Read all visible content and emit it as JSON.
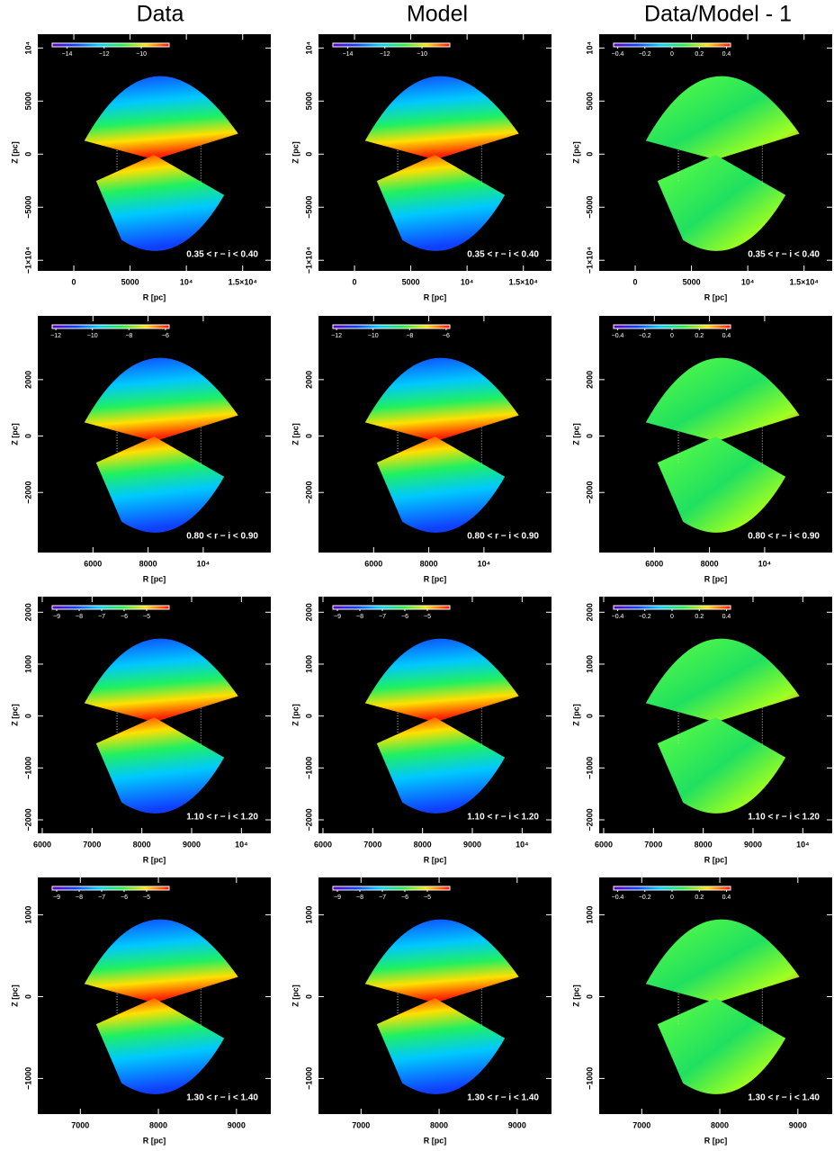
{
  "column_titles": [
    "Data",
    "Model",
    "Data/Model - 1"
  ],
  "chart_data": [
    {
      "type": "heatmap",
      "xlabel": "R [pc]",
      "ylabel": "Z [pc]",
      "annotation": "0.35 < r − i < 0.40",
      "xlim": [
        -3200,
        17500
      ],
      "ylim": [
        -11000,
        11300
      ],
      "xticks": [
        0,
        5000,
        {
          "value": 10000,
          "label": "10⁴"
        },
        {
          "value": 15000,
          "label": "1.5×10⁴"
        }
      ],
      "yticks": [
        {
          "value": -10000,
          "label": "−1×10⁴"
        },
        {
          "value": -5000,
          "label": "−5000"
        },
        0,
        5000,
        {
          "value": 10000,
          "label": "10⁴"
        }
      ],
      "clim": [
        -14.8,
        -8.5
      ],
      "cticks": [
        {
          "value": -14,
          "label": "−14"
        },
        {
          "value": -12,
          "label": "−12"
        },
        {
          "value": -10,
          "label": "−10"
        }
      ]
    },
    {
      "type": "heatmap",
      "xlabel": "R [pc]",
      "ylabel": "Z [pc]",
      "annotation": "0.35 < r − i < 0.40",
      "xlim": [
        -3200,
        17500
      ],
      "ylim": [
        -11000,
        11300
      ],
      "xticks": [
        0,
        5000,
        {
          "value": 10000,
          "label": "10⁴"
        },
        {
          "value": 15000,
          "label": "1.5×10⁴"
        }
      ],
      "yticks": [
        {
          "value": -10000,
          "label": "−1×10⁴"
        },
        {
          "value": -5000,
          "label": "−5000"
        },
        0,
        5000,
        {
          "value": 10000,
          "label": "10⁴"
        }
      ],
      "clim": [
        -14.8,
        -8.5
      ],
      "cticks": [
        {
          "value": -14,
          "label": "−14"
        },
        {
          "value": -12,
          "label": "−12"
        },
        {
          "value": -10,
          "label": "−10"
        }
      ]
    },
    {
      "type": "heatmap",
      "xlabel": "R [pc]",
      "ylabel": "Z [pc]",
      "annotation": "0.35 < r − i < 0.40",
      "xlim": [
        -3200,
        17500
      ],
      "ylim": [
        -11000,
        11300
      ],
      "xticks": [
        0,
        5000,
        {
          "value": 10000,
          "label": "10⁴"
        },
        {
          "value": 15000,
          "label": "1.5×10⁴"
        }
      ],
      "yticks": [
        {
          "value": -10000,
          "label": "−1×10⁴"
        },
        {
          "value": -5000,
          "label": "−5000"
        },
        0,
        5000,
        {
          "value": 10000,
          "label": "10⁴"
        }
      ],
      "clim": [
        -0.43,
        0.43
      ],
      "cticks": [
        {
          "value": -0.4,
          "label": "−0.4"
        },
        {
          "value": -0.2,
          "label": "−0.2"
        },
        0,
        0.2,
        0.4
      ]
    },
    {
      "type": "heatmap",
      "xlabel": "R [pc]",
      "ylabel": "Z [pc]",
      "annotation": "0.80 < r − i < 0.90",
      "xlim": [
        4000,
        12450
      ],
      "ylim": [
        -4130,
        4260
      ],
      "xticks": [
        6000,
        8000,
        {
          "value": 10000,
          "label": "10⁴"
        }
      ],
      "yticks": [
        {
          "value": -2000,
          "label": "−2000"
        },
        0,
        2000
      ],
      "clim": [
        -12.2,
        -5.8
      ],
      "cticks": [
        {
          "value": -12,
          "label": "−12"
        },
        {
          "value": -10,
          "label": "−10"
        },
        {
          "value": -8,
          "label": "−8"
        },
        {
          "value": -6,
          "label": "−6"
        }
      ]
    },
    {
      "type": "heatmap",
      "xlabel": "R [pc]",
      "ylabel": "Z [pc]",
      "annotation": "0.80 < r − i < 0.90",
      "xlim": [
        4000,
        12450
      ],
      "ylim": [
        -4130,
        4260
      ],
      "xticks": [
        6000,
        8000,
        {
          "value": 10000,
          "label": "10⁴"
        }
      ],
      "yticks": [
        {
          "value": -2000,
          "label": "−2000"
        },
        0,
        2000
      ],
      "clim": [
        -12.2,
        -5.8
      ],
      "cticks": [
        {
          "value": -12,
          "label": "−12"
        },
        {
          "value": -10,
          "label": "−10"
        },
        {
          "value": -8,
          "label": "−8"
        },
        {
          "value": -6,
          "label": "−6"
        }
      ]
    },
    {
      "type": "heatmap",
      "xlabel": "R [pc]",
      "ylabel": "Z [pc]",
      "annotation": "0.80 < r − i < 0.90",
      "xlim": [
        4000,
        12450
      ],
      "ylim": [
        -4130,
        4260
      ],
      "xticks": [
        6000,
        8000,
        {
          "value": 10000,
          "label": "10⁴"
        }
      ],
      "yticks": [
        {
          "value": -2000,
          "label": "−2000"
        },
        0,
        2000
      ],
      "clim": [
        -0.43,
        0.43
      ],
      "cticks": [
        {
          "value": -0.4,
          "label": "−0.4"
        },
        {
          "value": -0.2,
          "label": "−0.2"
        },
        0,
        0.2,
        0.4
      ]
    },
    {
      "type": "heatmap",
      "xlabel": "R [pc]",
      "ylabel": "Z [pc]",
      "annotation": "1.10 < r − i < 1.20",
      "xlim": [
        5910,
        10590
      ],
      "ylim": [
        -2260,
        2300
      ],
      "xticks": [
        6000,
        7000,
        8000,
        9000,
        {
          "value": 10000,
          "label": "10⁴"
        }
      ],
      "yticks": [
        {
          "value": -2000,
          "label": "−2000"
        },
        {
          "value": -1000,
          "label": "−1000"
        },
        0,
        1000,
        2000
      ],
      "clim": [
        -9.2,
        -4
      ],
      "cticks": [
        {
          "value": -9,
          "label": "−9"
        },
        {
          "value": -8,
          "label": "−8"
        },
        {
          "value": -7,
          "label": "−7"
        },
        {
          "value": -6,
          "label": "−6"
        },
        {
          "value": -5,
          "label": "−5"
        }
      ]
    },
    {
      "type": "heatmap",
      "xlabel": "R [pc]",
      "ylabel": "Z [pc]",
      "annotation": "1.10 < r − i < 1.20",
      "xlim": [
        5910,
        10590
      ],
      "ylim": [
        -2260,
        2300
      ],
      "xticks": [
        6000,
        7000,
        8000,
        9000,
        {
          "value": 10000,
          "label": "10⁴"
        }
      ],
      "yticks": [
        {
          "value": -2000,
          "label": "−2000"
        },
        {
          "value": -1000,
          "label": "−1000"
        },
        0,
        1000,
        2000
      ],
      "clim": [
        -9.2,
        -4
      ],
      "cticks": [
        {
          "value": -9,
          "label": "−9"
        },
        {
          "value": -8,
          "label": "−8"
        },
        {
          "value": -7,
          "label": "−7"
        },
        {
          "value": -6,
          "label": "−6"
        },
        {
          "value": -5,
          "label": "−5"
        }
      ]
    },
    {
      "type": "heatmap",
      "xlabel": "R [pc]",
      "ylabel": "Z [pc]",
      "annotation": "1.10 < r − i < 1.20",
      "xlim": [
        5910,
        10590
      ],
      "ylim": [
        -2260,
        2300
      ],
      "xticks": [
        6000,
        7000,
        8000,
        9000,
        {
          "value": 10000,
          "label": "10⁴"
        }
      ],
      "yticks": [
        {
          "value": -2000,
          "label": "−2000"
        },
        {
          "value": -1000,
          "label": "−1000"
        },
        0,
        1000,
        2000
      ],
      "clim": [
        -0.43,
        0.43
      ],
      "cticks": [
        {
          "value": -0.4,
          "label": "−0.4"
        },
        {
          "value": -0.2,
          "label": "−0.2"
        },
        0,
        0.2,
        0.4
      ]
    },
    {
      "type": "heatmap",
      "xlabel": "R [pc]",
      "ylabel": "Z [pc]",
      "annotation": "1.30 < r − i < 1.40",
      "xlim": [
        6455,
        9440
      ],
      "ylim": [
        -1436,
        1458
      ],
      "xticks": [
        7000,
        8000,
        9000
      ],
      "yticks": [
        {
          "value": -1000,
          "label": "−1000"
        },
        0,
        1000
      ],
      "clim": [
        -9.2,
        -4
      ],
      "cticks": [
        {
          "value": -9,
          "label": "−9"
        },
        {
          "value": -8,
          "label": "−8"
        },
        {
          "value": -7,
          "label": "−7"
        },
        {
          "value": -6,
          "label": "−6"
        },
        {
          "value": -5,
          "label": "−5"
        }
      ]
    },
    {
      "type": "heatmap",
      "xlabel": "R [pc]",
      "ylabel": "Z [pc]",
      "annotation": "1.30 < r − i < 1.40",
      "xlim": [
        6455,
        9440
      ],
      "ylim": [
        -1436,
        1458
      ],
      "xticks": [
        7000,
        8000,
        9000
      ],
      "yticks": [
        {
          "value": -1000,
          "label": "−1000"
        },
        0,
        1000
      ],
      "clim": [
        -9.2,
        -4
      ],
      "cticks": [
        {
          "value": -9,
          "label": "−9"
        },
        {
          "value": -8,
          "label": "−8"
        },
        {
          "value": -7,
          "label": "−7"
        },
        {
          "value": -6,
          "label": "−6"
        },
        {
          "value": -5,
          "label": "−5"
        }
      ]
    },
    {
      "type": "heatmap",
      "xlabel": "R [pc]",
      "ylabel": "Z [pc]",
      "annotation": "1.30 < r − i < 1.40",
      "xlim": [
        6455,
        9440
      ],
      "ylim": [
        -1436,
        1458
      ],
      "xticks": [
        7000,
        8000,
        9000
      ],
      "yticks": [
        {
          "value": -1000,
          "label": "−1000"
        },
        0,
        1000
      ],
      "clim": [
        -0.43,
        0.43
      ],
      "cticks": [
        {
          "value": -0.4,
          "label": "−0.4"
        },
        {
          "value": -0.2,
          "label": "−0.2"
        },
        0,
        0.2,
        0.4
      ]
    }
  ]
}
